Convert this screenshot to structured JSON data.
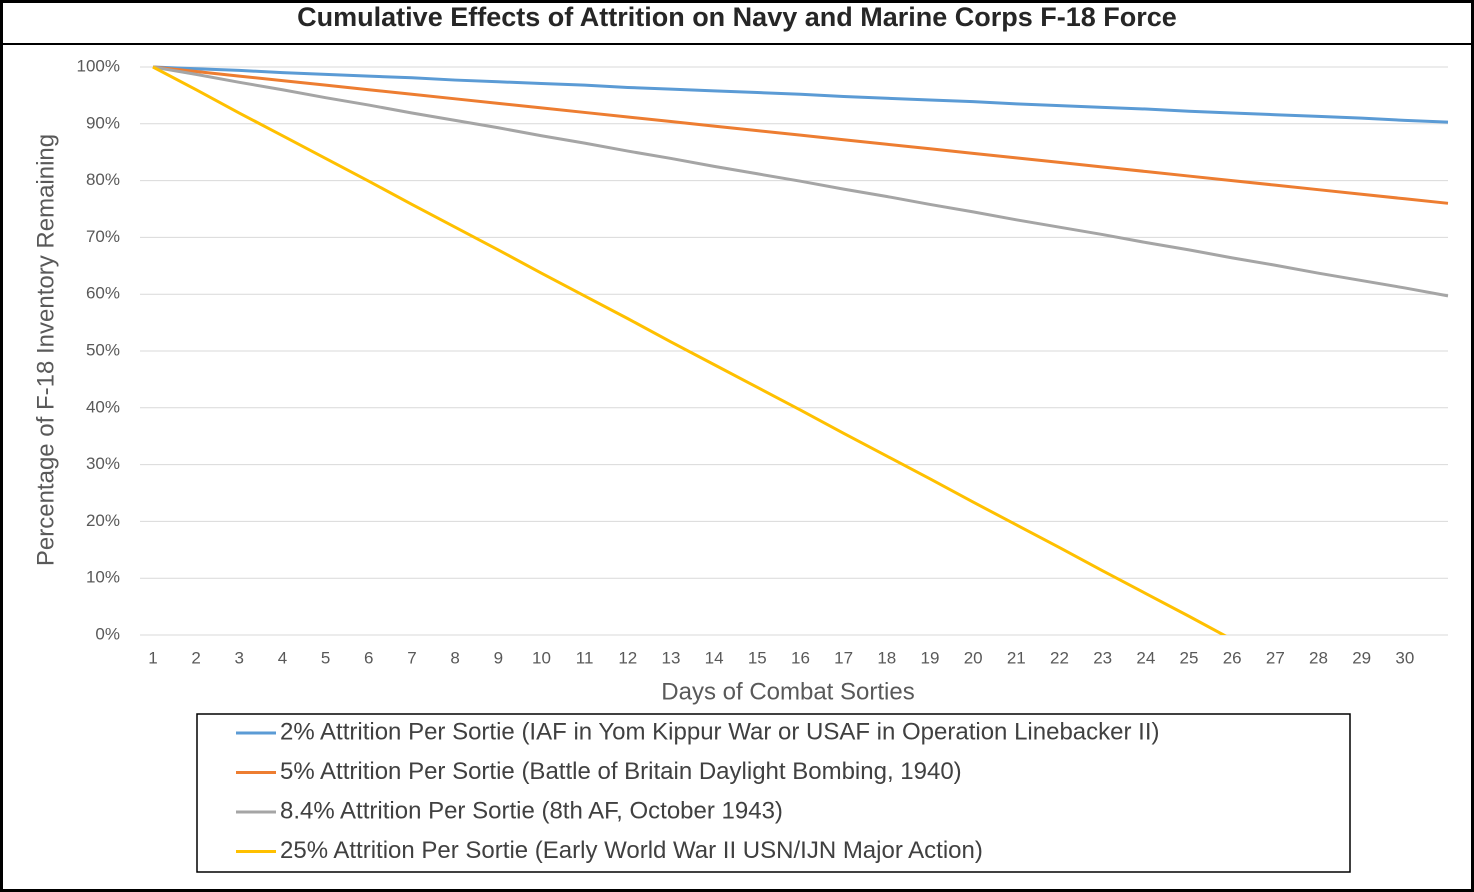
{
  "chart_data": {
    "type": "line",
    "title": "Cumulative Effects of Attrition on Navy and Marine Corps F-18 Force",
    "x_label": "Days of Combat Sorties",
    "y_label": "Percentage of F-18 Inventory Remaining",
    "x": [
      1,
      2,
      3,
      4,
      5,
      6,
      7,
      8,
      9,
      10,
      11,
      12,
      13,
      14,
      15,
      16,
      17,
      18,
      19,
      20,
      21,
      22,
      23,
      24,
      25,
      26,
      27,
      28,
      29,
      30,
      31
    ],
    "xlim": [
      0.7,
      31
    ],
    "xticks": [
      1,
      2,
      3,
      4,
      5,
      6,
      7,
      8,
      9,
      10,
      11,
      12,
      13,
      14,
      15,
      16,
      17,
      18,
      19,
      20,
      21,
      22,
      23,
      24,
      25,
      26,
      27,
      28,
      29,
      30
    ],
    "ylim": [
      0,
      100
    ],
    "yticks": [
      {
        "value": 0,
        "label": "0%"
      },
      {
        "value": 10,
        "label": "10%"
      },
      {
        "value": 20,
        "label": "20%"
      },
      {
        "value": 30,
        "label": "30%"
      },
      {
        "value": 40,
        "label": "40%"
      },
      {
        "value": 50,
        "label": "50%"
      },
      {
        "value": 60,
        "label": "60%"
      },
      {
        "value": 70,
        "label": "70%"
      },
      {
        "value": 80,
        "label": "80%"
      },
      {
        "value": 90,
        "label": "90%"
      },
      {
        "value": 100,
        "label": "100%"
      }
    ],
    "grid": true,
    "legend": "bottom",
    "series": [
      {
        "name": "2% Attrition Per Sortie (IAF in Yom Kippur War or USAF in Operation Linebacker II)",
        "color": "#5b9bd5",
        "values": [
          100,
          99.7,
          99.4,
          99.0,
          98.7,
          98.4,
          98.1,
          97.7,
          97.4,
          97.1,
          96.8,
          96.4,
          96.1,
          95.8,
          95.5,
          95.2,
          94.8,
          94.5,
          94.2,
          93.9,
          93.5,
          93.2,
          92.9,
          92.6,
          92.2,
          91.9,
          91.6,
          91.3,
          91.0,
          90.6,
          90.3
        ]
      },
      {
        "name": "5% Attrition Per Sortie (Battle of Britain Daylight Bombing, 1940)",
        "color": "#ed7d31",
        "values": [
          100,
          99.2,
          98.4,
          97.6,
          96.8,
          96.0,
          95.2,
          94.4,
          93.6,
          92.8,
          92.0,
          91.2,
          90.4,
          89.6,
          88.8,
          88.0,
          87.2,
          86.4,
          85.6,
          84.8,
          84.0,
          83.2,
          82.4,
          81.6,
          80.8,
          80.0,
          79.2,
          78.4,
          77.6,
          76.8,
          76.0
        ]
      },
      {
        "name": "8.4% Attrition Per Sortie (8th AF, October 1943)",
        "color": "#a5a5a5",
        "values": [
          100,
          98.7,
          97.3,
          96.0,
          94.6,
          93.3,
          91.9,
          90.6,
          89.3,
          87.9,
          86.6,
          85.2,
          83.9,
          82.5,
          81.2,
          79.9,
          78.5,
          77.2,
          75.8,
          74.5,
          73.1,
          71.8,
          70.5,
          69.1,
          67.8,
          66.4,
          65.1,
          63.7,
          62.4,
          61.1,
          59.7
        ]
      },
      {
        "name": "25% Attrition Per Sortie (Early World War II USN/IJN Major Action)",
        "color": "#ffc000",
        "values": [
          100,
          96.0,
          91.9,
          87.9,
          83.9,
          79.9,
          75.8,
          71.8,
          67.8,
          63.7,
          59.7,
          55.7,
          51.6,
          47.6,
          43.6,
          39.6,
          35.5,
          31.5,
          27.5,
          23.4,
          19.4,
          15.4,
          11.3,
          7.3,
          3.3,
          -0.8,
          null,
          null,
          null,
          null,
          null
        ]
      }
    ]
  }
}
